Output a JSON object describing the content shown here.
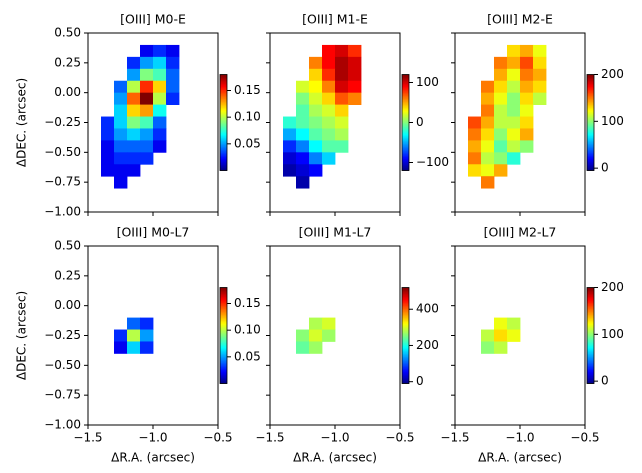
{
  "chart_data": [
    {
      "type": "heatmap",
      "title": "[OIII] M0-E",
      "colormap": "jet",
      "ylabel": "ΔDEC. (arcsec)",
      "xlim": [
        -1.5,
        -0.5
      ],
      "xticks": [
        {
          "value": -1.5,
          "label": "−1.5"
        },
        {
          "value": -1.0,
          "label": "−1.0"
        },
        {
          "value": -0.5,
          "label": "−0.5"
        }
      ],
      "ylim": [
        -1.0,
        0.5
      ],
      "yticks": [
        {
          "value": 0.5,
          "label": "0.50"
        },
        {
          "value": 0.25,
          "label": "0.25"
        },
        {
          "value": 0.0,
          "label": "0.00"
        },
        {
          "value": -0.25,
          "label": "−0.25"
        },
        {
          "value": -0.5,
          "label": "−0.50"
        },
        {
          "value": -0.75,
          "label": "−0.75"
        },
        {
          "value": -1.0,
          "label": "−1.00"
        }
      ],
      "x": [
        -1.35,
        -1.25,
        -1.15,
        -1.05,
        -0.95,
        -0.85
      ],
      "y": [
        0.35,
        0.25,
        0.15,
        0.05,
        -0.05,
        -0.15,
        -0.25,
        -0.35,
        -0.45,
        -0.55,
        -0.65,
        -0.75
      ],
      "values": [
        [
          null,
          null,
          null,
          0.02,
          0.03,
          0.02
        ],
        [
          null,
          null,
          0.03,
          0.05,
          0.06,
          0.03
        ],
        [
          null,
          null,
          0.05,
          0.09,
          0.08,
          0.04
        ],
        [
          null,
          0.04,
          0.1,
          0.15,
          0.12,
          0.04
        ],
        [
          null,
          0.05,
          0.14,
          0.18,
          0.1,
          0.03
        ],
        [
          null,
          0.06,
          0.12,
          0.13,
          0.07,
          null
        ],
        [
          0.03,
          0.06,
          0.09,
          0.08,
          0.04,
          null
        ],
        [
          0.03,
          0.05,
          0.06,
          0.05,
          0.03,
          null
        ],
        [
          0.02,
          0.04,
          0.04,
          0.04,
          0.02,
          null
        ],
        [
          0.02,
          0.03,
          0.03,
          0.03,
          null,
          null
        ],
        [
          0.02,
          0.02,
          0.02,
          null,
          null,
          null
        ],
        [
          null,
          0.02,
          null,
          null,
          null,
          null
        ]
      ],
      "clim": [
        0.0,
        0.18
      ],
      "cticks": [
        0.15,
        {
          "value": 0.1,
          "label": "0.10"
        },
        0.05
      ]
    },
    {
      "type": "heatmap",
      "title": "[OIII] M1-E",
      "colormap": "jet",
      "xlim": [
        -1.5,
        -0.5
      ],
      "xticks": [
        -1.5,
        -1.0,
        -0.5
      ],
      "ylim": [
        -1.0,
        0.5
      ],
      "yticks": [
        0.5,
        0.25,
        0.0,
        -0.25,
        -0.5,
        -0.75,
        -1.0
      ],
      "x": [
        -1.35,
        -1.25,
        -1.15,
        -1.05,
        -0.95,
        -0.85
      ],
      "y": [
        0.35,
        0.25,
        0.15,
        0.05,
        -0.05,
        -0.15,
        -0.25,
        -0.35,
        -0.45,
        -0.55,
        -0.65,
        -0.75
      ],
      "values": [
        [
          null,
          null,
          null,
          90,
          100,
          80
        ],
        [
          null,
          null,
          60,
          90,
          110,
          100
        ],
        [
          null,
          null,
          40,
          80,
          110,
          100
        ],
        [
          null,
          20,
          30,
          60,
          100,
          90
        ],
        [
          null,
          0,
          20,
          40,
          70,
          60
        ],
        [
          null,
          -10,
          10,
          20,
          40,
          null
        ],
        [
          -20,
          -10,
          0,
          10,
          20,
          null
        ],
        [
          -50,
          -30,
          -10,
          0,
          10,
          null
        ],
        [
          -80,
          -60,
          -30,
          -10,
          -10,
          null
        ],
        [
          -100,
          -90,
          -60,
          -40,
          null,
          null
        ],
        [
          -110,
          -100,
          -90,
          null,
          null,
          null
        ],
        [
          null,
          -110,
          null,
          null,
          null,
          null
        ]
      ],
      "clim": [
        -120,
        120
      ],
      "cticks": [
        100,
        0,
        {
          "value": -100,
          "label": "−100"
        }
      ]
    },
    {
      "type": "heatmap",
      "title": "[OIII] M2-E",
      "colormap": "jet",
      "xlim": [
        -1.5,
        -0.5
      ],
      "xticks": [
        -1.5,
        -1.0,
        -0.5
      ],
      "ylim": [
        -1.0,
        0.5
      ],
      "yticks": [
        0.5,
        0.25,
        0.0,
        -0.25,
        -0.5,
        -0.75,
        -1.0
      ],
      "x": [
        -1.35,
        -1.25,
        -1.15,
        -1.05,
        -0.95,
        -0.85
      ],
      "y": [
        0.35,
        0.25,
        0.15,
        0.05,
        -0.05,
        -0.15,
        -0.25,
        -0.35,
        -0.45,
        -0.55,
        -0.65,
        -0.75
      ],
      "values": [
        [
          null,
          null,
          null,
          130,
          140,
          120
        ],
        [
          null,
          null,
          150,
          140,
          160,
          130
        ],
        [
          null,
          null,
          140,
          120,
          150,
          140
        ],
        [
          null,
          150,
          130,
          110,
          140,
          130
        ],
        [
          null,
          140,
          120,
          100,
          130,
          110
        ],
        [
          null,
          150,
          110,
          100,
          120,
          null
        ],
        [
          160,
          140,
          110,
          110,
          130,
          null
        ],
        [
          150,
          130,
          100,
          120,
          140,
          null
        ],
        [
          140,
          120,
          90,
          110,
          100,
          null
        ],
        [
          150,
          110,
          100,
          80,
          null,
          null
        ],
        [
          130,
          120,
          140,
          null,
          null,
          null
        ],
        [
          null,
          150,
          null,
          null,
          null,
          null
        ]
      ],
      "clim": [
        -5,
        200
      ],
      "cticks": [
        200,
        100,
        0
      ]
    },
    {
      "type": "heatmap",
      "title": "[OIII] M0-L7",
      "colormap": "jet",
      "ylabel": "ΔDEC. (arcsec)",
      "xlabel": "ΔR.A. (arcsec)",
      "xlim": [
        -1.5,
        -0.5
      ],
      "xticks": [
        {
          "value": -1.5,
          "label": "−1.5"
        },
        {
          "value": -1.0,
          "label": "−1.0"
        },
        {
          "value": -0.5,
          "label": "−0.5"
        }
      ],
      "ylim": [
        -1.0,
        0.5
      ],
      "yticks": [
        {
          "value": 0.5,
          "label": "0.50"
        },
        {
          "value": 0.25,
          "label": "0.25"
        },
        {
          "value": 0.0,
          "label": "0.00"
        },
        {
          "value": -0.25,
          "label": "−0.25"
        },
        {
          "value": -0.5,
          "label": "−0.50"
        },
        {
          "value": -0.75,
          "label": "−0.75"
        },
        {
          "value": -1.0,
          "label": "−1.00"
        }
      ],
      "x": [
        -1.25,
        -1.15,
        -1.05
      ],
      "y": [
        -0.15,
        -0.25,
        -0.35
      ],
      "values": [
        [
          null,
          0.04,
          0.03
        ],
        [
          0.03,
          0.1,
          0.05
        ],
        [
          0.02,
          0.06,
          0.03
        ]
      ],
      "clim": [
        0.0,
        0.18
      ],
      "cticks": [
        0.15,
        {
          "value": 0.1,
          "label": "0.10"
        },
        0.05
      ]
    },
    {
      "type": "heatmap",
      "title": "[OIII] M1-L7",
      "colormap": "jet",
      "xlabel": "ΔR.A. (arcsec)",
      "xlim": [
        -1.5,
        -0.5
      ],
      "xticks": [
        {
          "value": -1.5,
          "label": "−1.5"
        },
        {
          "value": -1.0,
          "label": "−1.0"
        },
        {
          "value": -0.5,
          "label": "−0.5"
        }
      ],
      "ylim": [
        -1.0,
        0.5
      ],
      "yticks": [
        0.5,
        0.25,
        0.0,
        -0.25,
        -0.5,
        -0.75,
        -1.0
      ],
      "x": [
        -1.25,
        -1.15,
        -1.05
      ],
      "y": [
        -0.15,
        -0.25,
        -0.35
      ],
      "values": [
        [
          null,
          280,
          300
        ],
        [
          260,
          300,
          270
        ],
        [
          240,
          270,
          null
        ]
      ],
      "clim": [
        -10,
        520
      ],
      "cticks": [
        400,
        200,
        0
      ]
    },
    {
      "type": "heatmap",
      "title": "[OIII] M2-L7",
      "colormap": "jet",
      "xlabel": "ΔR.A. (arcsec)",
      "xlim": [
        -1.5,
        -0.5
      ],
      "xticks": [
        {
          "value": -1.5,
          "label": "−1.5"
        },
        {
          "value": -1.0,
          "label": "−1.0"
        },
        {
          "value": -0.5,
          "label": "−0.5"
        }
      ],
      "ylim": [
        -1.0,
        0.5
      ],
      "yticks": [
        0.5,
        0.25,
        0.0,
        -0.25,
        -0.5,
        -0.75,
        -1.0
      ],
      "x": [
        -1.25,
        -1.15,
        -1.05
      ],
      "y": [
        -0.15,
        -0.25,
        -0.35
      ],
      "values": [
        [
          null,
          120,
          110
        ],
        [
          110,
          130,
          120
        ],
        [
          100,
          110,
          null
        ]
      ],
      "clim": [
        -5,
        200
      ],
      "cticks": [
        200,
        100,
        0
      ]
    }
  ]
}
